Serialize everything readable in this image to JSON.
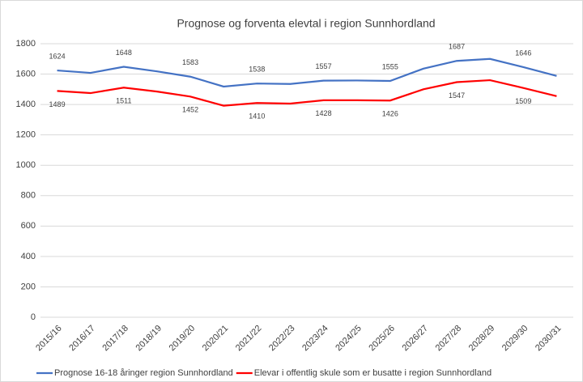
{
  "chart_data": {
    "type": "line",
    "title": "Prognose og forventa elevtal i region Sunnhordland",
    "categories": [
      "2015/16",
      "2016/17",
      "2017/18",
      "2018/19",
      "2019/20",
      "2020/21",
      "2021/22",
      "2022/23",
      "2023/24",
      "2024/25",
      "2025/26",
      "2026/27",
      "2027/28",
      "2028/29",
      "2029/30",
      "2030/31"
    ],
    "series": [
      {
        "name": "Prognose 16-18 åringer region Sunnhordland",
        "color": "#4472c4",
        "values": [
          1624,
          1608,
          1648,
          1618,
          1583,
          1518,
          1538,
          1535,
          1557,
          1558,
          1555,
          1636,
          1687,
          1700,
          1646,
          1588
        ],
        "value_labels": [
          "1624",
          null,
          "1648",
          null,
          "1583",
          null,
          "1538",
          null,
          "1557",
          null,
          "1555",
          null,
          "1687",
          null,
          "1646",
          null
        ]
      },
      {
        "name": "Elevar i offentlig skule som er busatte i region Sunnhordland",
        "color": "#ff0000",
        "values": [
          1489,
          1475,
          1511,
          1485,
          1452,
          1392,
          1410,
          1406,
          1428,
          1428,
          1426,
          1500,
          1547,
          1560,
          1509,
          1455
        ],
        "value_labels": [
          "1489",
          null,
          "1511",
          null,
          "1452",
          null,
          "1410",
          null,
          "1428",
          null,
          "1426",
          null,
          "1547",
          null,
          "1509",
          null
        ]
      }
    ],
    "ylim": [
      0,
      1800
    ],
    "yticks": [
      0,
      200,
      400,
      600,
      800,
      1000,
      1200,
      1400,
      1600,
      1800
    ],
    "grid": true,
    "legend": "bottom"
  }
}
